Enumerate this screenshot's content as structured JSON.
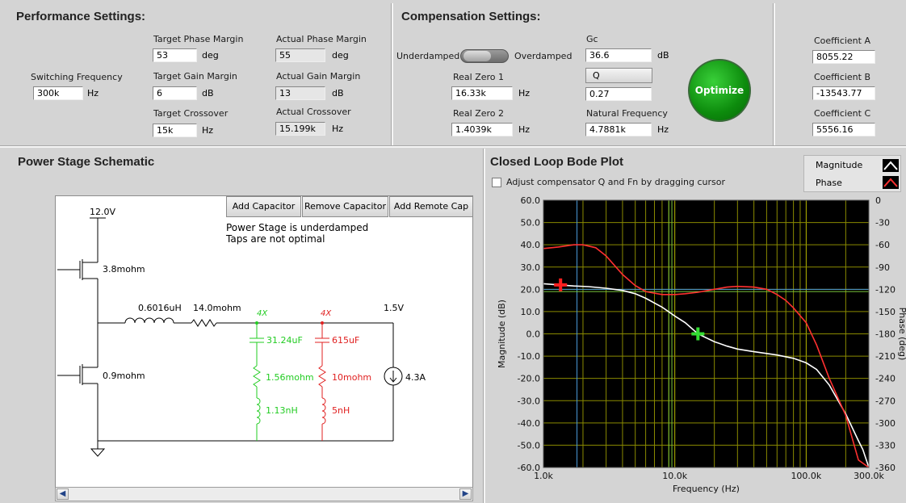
{
  "performance": {
    "title": "Performance Settings:",
    "switching_frequency": {
      "label": "Switching Frequency",
      "value": "300k",
      "unit": "Hz"
    },
    "target_phase_margin": {
      "label": "Target Phase Margin",
      "value": "53",
      "unit": "deg"
    },
    "target_gain_margin": {
      "label": "Target Gain Margin",
      "value": "6",
      "unit": "dB"
    },
    "target_crossover": {
      "label": "Target Crossover",
      "value": "15k",
      "unit": "Hz"
    },
    "actual_phase_margin": {
      "label": "Actual Phase Margin",
      "value": "55",
      "unit": "deg"
    },
    "actual_gain_margin": {
      "label": "Actual Gain Margin",
      "value": "13",
      "unit": "dB"
    },
    "actual_crossover": {
      "label": "Actual Crossover",
      "value": "15.199k",
      "unit": "Hz"
    }
  },
  "compensation": {
    "title": "Compensation Settings:",
    "underdamped_label": "Underdamped",
    "overdamped_label": "Overdamped",
    "gc": {
      "label": "Gc",
      "value": "36.6",
      "unit": "dB"
    },
    "q_button": "Q",
    "q_value": "0.27",
    "real_zero_1": {
      "label": "Real Zero 1",
      "value": "16.33k",
      "unit": "Hz"
    },
    "real_zero_2": {
      "label": "Real Zero 2",
      "value": "1.4039k",
      "unit": "Hz"
    },
    "natural_frequency": {
      "label": "Natural Frequency",
      "value": "4.7881k",
      "unit": "Hz"
    },
    "optimize_label": "Optimize"
  },
  "coefficients": {
    "a": {
      "label": "Coefficient A",
      "value": "8055.22"
    },
    "b": {
      "label": "Coefficient B",
      "value": "-13543.77"
    },
    "c": {
      "label": "Coefficient C",
      "value": "5556.16"
    }
  },
  "schematic": {
    "title": "Power Stage Schematic",
    "buttons": {
      "add_capacitor": "Add Capacitor",
      "remove_capacitor": "Remove Capacitor",
      "add_remote_cap": "Add Remote Cap"
    },
    "status_line1": "Power Stage is underdamped",
    "status_line2": "Taps are not optimal",
    "vin": "12.0V",
    "high_side_r": "3.8mohm",
    "low_side_r": "0.9mohm",
    "inductor": "0.6016uH",
    "dcr": "14.0mohm",
    "vout": "1.5V",
    "load_current": "4.3A",
    "bank1": {
      "count": "4X",
      "cap": "31.24uF",
      "esr": "1.56mohm",
      "esl": "1.13nH",
      "color": "#22cc22"
    },
    "bank2": {
      "count": "4X",
      "cap": "615uF",
      "esr": "10mohm",
      "esl": "5nH",
      "color": "#e02020"
    },
    "scroll_left": "◀",
    "scroll_right": "▶"
  },
  "bode": {
    "title": "Closed Loop Bode Plot",
    "checkbox_label": "Adjust compensator Q and Fn by dragging cursor",
    "legend": [
      {
        "name": "Magnitude",
        "color": "#ffffff"
      },
      {
        "name": "Phase",
        "color": "#ff3030"
      }
    ]
  },
  "chart_data": {
    "type": "line",
    "xlabel": "Frequency (Hz)",
    "ylabel": "Magnitude (dB)",
    "y2label": "Phase (deg)",
    "xscale": "log",
    "xlim": [
      1000,
      300000
    ],
    "ylim": [
      -60,
      60
    ],
    "y2lim": [
      -360,
      0
    ],
    "x_ticks": [
      1000,
      10000,
      100000,
      300000
    ],
    "x_tick_labels": [
      "1.0k",
      "10.0k",
      "100.0k",
      "300.0k"
    ],
    "y_ticks": [
      60,
      50,
      40,
      30,
      20,
      10,
      0,
      -10,
      -20,
      -30,
      -40,
      -50,
      -60
    ],
    "y_tick_labels": [
      "60.0",
      "50.0",
      "40.0",
      "30.0",
      "20.0",
      "10.0",
      "0.0",
      "-10.0",
      "-20.0",
      "-30.0",
      "-40.0",
      "-50.0",
      "-60.0"
    ],
    "y2_ticks": [
      0,
      -30,
      -60,
      -90,
      -120,
      -150,
      -180,
      -210,
      -240,
      -270,
      -300,
      -330,
      -360
    ],
    "y2_tick_labels": [
      "0",
      "-30",
      "-60",
      "-90",
      "-120",
      "-150",
      "-180",
      "-210",
      "-240",
      "-270",
      "-300",
      "-330",
      "-360"
    ],
    "grid": true,
    "background": "#000000",
    "series": [
      {
        "name": "Magnitude",
        "axis": "y",
        "color": "#ffffff",
        "x": [
          1000,
          1300,
          1700,
          2200,
          3000,
          4000,
          5000,
          6000,
          8000,
          10000,
          12000,
          15000,
          20000,
          25000,
          30000,
          40000,
          50000,
          60000,
          80000,
          100000,
          120000,
          150000,
          200000,
          250000,
          270000,
          300000
        ],
        "y": [
          22.5,
          22,
          21.5,
          21.2,
          20.5,
          19.5,
          18,
          16,
          12,
          8,
          5,
          0,
          -3.5,
          -5.5,
          -6.8,
          -8,
          -8.8,
          -9.5,
          -11,
          -13,
          -16,
          -23,
          -36,
          -48,
          -52,
          -60
        ]
      },
      {
        "name": "Phase",
        "axis": "y2",
        "color": "#ff3030",
        "x": [
          1000,
          1300,
          1700,
          2000,
          2500,
          3000,
          4000,
          5000,
          6000,
          8000,
          10000,
          12000,
          15000,
          20000,
          25000,
          30000,
          40000,
          50000,
          60000,
          70000,
          80000,
          100000,
          120000,
          150000,
          200000,
          250000,
          300000
        ],
        "y": [
          -65,
          -63,
          -60,
          -60,
          -64,
          -75,
          -100,
          -115,
          -123,
          -127,
          -127,
          -126,
          -124,
          -120,
          -117,
          -116,
          -117,
          -120,
          -127,
          -135,
          -145,
          -165,
          -195,
          -240,
          -290,
          -350,
          -360
        ]
      }
    ],
    "markers": [
      {
        "name": "red-cursor",
        "x": 1350,
        "y": 22,
        "color": "#ff2020"
      },
      {
        "name": "green-cursor",
        "x": 15000,
        "y": 0,
        "color": "#33dd33"
      }
    ],
    "cursor_lines": [
      {
        "orient": "v",
        "x": 1800,
        "color": "#4a9ad8"
      },
      {
        "orient": "v",
        "x": 9000,
        "color": "#7ac83a"
      },
      {
        "orient": "v",
        "x": 9500,
        "color": "#7ac83a"
      },
      {
        "orient": "h",
        "y": 20,
        "color": "#4a9ad8"
      },
      {
        "orient": "h",
        "y": 19,
        "color": "#7ac83a"
      }
    ]
  }
}
